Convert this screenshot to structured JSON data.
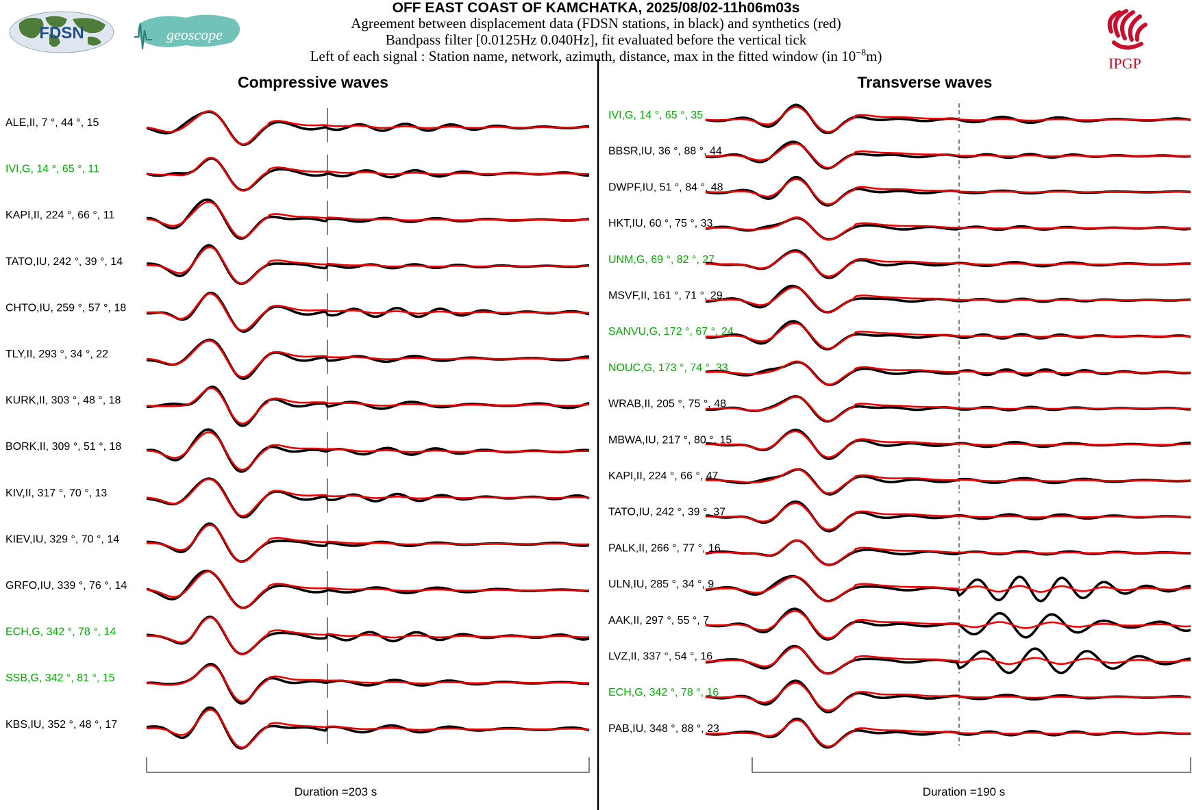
{
  "header": {
    "title": "OFF EAST COAST OF KAMCHATKA, 2025/08/02-11h06m03s",
    "line1": "Agreement between displacement data (FDSN stations, in black) and synthetics (red)",
    "line2": "Bandpass filter [0.0125Hz 0.040Hz], fit evaluated before the vertical tick",
    "line3_prefix": "Left of each signal : Station name, network, azimuth, distance, max in the fitted window (in 10",
    "line3_exp": "−8",
    "line3_suffix": "m)"
  },
  "logos": {
    "fdsn": "FDSN",
    "geoscope": "geoscope",
    "ipgp": "IPGP"
  },
  "colors": {
    "data": "#000000",
    "synthetic": "#ee0000",
    "label_default": "#000000",
    "label_geoscope": "#00aa00",
    "logo_red": "#c8102e",
    "geoscope_teal": "#3aa79a",
    "fdsn_blue": "#1f4e8c"
  },
  "chart_data": [
    {
      "type": "line",
      "title": "Compressive waves",
      "duration_label": "Duration =203 s",
      "duration_s": 203,
      "series": [
        {
          "name": "data",
          "color": "black"
        },
        {
          "name": "synthetics",
          "color": "red"
        }
      ],
      "stations": [
        {
          "label": "ALE,II, 7 °, 44 °, 15",
          "station": "ALE",
          "network": "II",
          "azimuth": 7,
          "distance": 44,
          "max": 15,
          "green": false
        },
        {
          "label": "IVI,G, 14 °, 65 °, 11",
          "station": "IVI",
          "network": "G",
          "azimuth": 14,
          "distance": 65,
          "max": 11,
          "green": true
        },
        {
          "label": "KAPI,II, 224 °, 66 °, 11",
          "station": "KAPI",
          "network": "II",
          "azimuth": 224,
          "distance": 66,
          "max": 11,
          "green": false
        },
        {
          "label": "TATO,IU, 242 °, 39 °, 14",
          "station": "TATO",
          "network": "IU",
          "azimuth": 242,
          "distance": 39,
          "max": 14,
          "green": false
        },
        {
          "label": "CHTO,IU, 259 °, 57 °, 18",
          "station": "CHTO",
          "network": "IU",
          "azimuth": 259,
          "distance": 57,
          "max": 18,
          "green": false
        },
        {
          "label": "TLY,II, 293 °, 34 °, 22",
          "station": "TLY",
          "network": "II",
          "azimuth": 293,
          "distance": 34,
          "max": 22,
          "green": false
        },
        {
          "label": "KURK,II, 303 °, 48 °, 18",
          "station": "KURK",
          "network": "II",
          "azimuth": 303,
          "distance": 48,
          "max": 18,
          "green": false
        },
        {
          "label": "BORK,II, 309 °, 51 °, 18",
          "station": "BORK",
          "network": "II",
          "azimuth": 309,
          "distance": 51,
          "max": 18,
          "green": false
        },
        {
          "label": "KIV,II, 317 °, 70 °, 13",
          "station": "KIV",
          "network": "II",
          "azimuth": 317,
          "distance": 70,
          "max": 13,
          "green": false
        },
        {
          "label": "KIEV,IU, 329 °, 70 °, 14",
          "station": "KIEV",
          "network": "IU",
          "azimuth": 329,
          "distance": 70,
          "max": 14,
          "green": false
        },
        {
          "label": "GRFO,IU, 339 °, 76 °, 14",
          "station": "GRFO",
          "network": "IU",
          "azimuth": 339,
          "distance": 76,
          "max": 14,
          "green": false
        },
        {
          "label": "ECH,G, 342 °, 78 °, 14",
          "station": "ECH",
          "network": "G",
          "azimuth": 342,
          "distance": 78,
          "max": 14,
          "green": true
        },
        {
          "label": "SSB,G, 342 °, 81 °, 15",
          "station": "SSB",
          "network": "G",
          "azimuth": 342,
          "distance": 81,
          "max": 15,
          "green": true
        },
        {
          "label": "KBS,IU, 352 °, 48 °, 17",
          "station": "KBS",
          "network": "IU",
          "azimuth": 352,
          "distance": 48,
          "max": 17,
          "green": false
        }
      ]
    },
    {
      "type": "line",
      "title": "Transverse waves",
      "duration_label": "Duration =190 s",
      "duration_s": 190,
      "series": [
        {
          "name": "data",
          "color": "black"
        },
        {
          "name": "synthetics",
          "color": "red"
        }
      ],
      "stations": [
        {
          "label": "IVI,G, 14 °, 65 °, 35",
          "station": "IVI",
          "network": "G",
          "azimuth": 14,
          "distance": 65,
          "max": 35,
          "green": true
        },
        {
          "label": "BBSR,IU, 36 °, 88 °, 44",
          "station": "BBSR",
          "network": "IU",
          "azimuth": 36,
          "distance": 88,
          "max": 44,
          "green": false
        },
        {
          "label": "DWPF,IU, 51 °, 84 °, 48",
          "station": "DWPF",
          "network": "IU",
          "azimuth": 51,
          "distance": 84,
          "max": 48,
          "green": false
        },
        {
          "label": "HKT,IU, 60 °, 75 °, 33",
          "station": "HKT",
          "network": "IU",
          "azimuth": 60,
          "distance": 75,
          "max": 33,
          "green": false
        },
        {
          "label": "UNM,G, 69 °, 82 °, 27",
          "station": "UNM",
          "network": "G",
          "azimuth": 69,
          "distance": 82,
          "max": 27,
          "green": true
        },
        {
          "label": "MSVF,II, 161 °, 71 °, 29",
          "station": "MSVF",
          "network": "II",
          "azimuth": 161,
          "distance": 71,
          "max": 29,
          "green": false
        },
        {
          "label": "SANVU,G, 172 °, 67 °, 24",
          "station": "SANVU",
          "network": "G",
          "azimuth": 172,
          "distance": 67,
          "max": 24,
          "green": true
        },
        {
          "label": "NOUC,G, 173 °, 74 °, 33",
          "station": "NOUC",
          "network": "G",
          "azimuth": 173,
          "distance": 74,
          "max": 33,
          "green": true
        },
        {
          "label": "WRAB,II, 205 °, 75 °, 48",
          "station": "WRAB",
          "network": "II",
          "azimuth": 205,
          "distance": 75,
          "max": 48,
          "green": false
        },
        {
          "label": "MBWA,IU, 217 °, 80 °, 15",
          "station": "MBWA",
          "network": "IU",
          "azimuth": 217,
          "distance": 80,
          "max": 15,
          "green": false
        },
        {
          "label": "KAPI,II, 224 °, 66 °, 47",
          "station": "KAPI",
          "network": "II",
          "azimuth": 224,
          "distance": 66,
          "max": 47,
          "green": false
        },
        {
          "label": "TATO,IU, 242 °, 39 °, 37",
          "station": "TATO",
          "network": "IU",
          "azimuth": 242,
          "distance": 39,
          "max": 37,
          "green": false
        },
        {
          "label": "PALK,II, 266 °, 77 °, 16",
          "station": "PALK",
          "network": "II",
          "azimuth": 266,
          "distance": 77,
          "max": 16,
          "green": false
        },
        {
          "label": "ULN,IU, 285 °, 34 °, 9",
          "station": "ULN",
          "network": "IU",
          "azimuth": 285,
          "distance": 34,
          "max": 9,
          "green": false
        },
        {
          "label": "AAK,II, 297 °, 55 °, 7",
          "station": "AAK",
          "network": "II",
          "azimuth": 297,
          "distance": 55,
          "max": 7,
          "green": false
        },
        {
          "label": "LVZ,II, 337 °, 54 °, 16",
          "station": "LVZ",
          "network": "II",
          "azimuth": 337,
          "distance": 54,
          "max": 16,
          "green": false
        },
        {
          "label": "ECH,G, 342 °, 78 °, 16",
          "station": "ECH",
          "network": "G",
          "azimuth": 342,
          "distance": 78,
          "max": 16,
          "green": true
        },
        {
          "label": "PAB,IU, 348 °, 88 °, 23",
          "station": "PAB",
          "network": "IU",
          "azimuth": 348,
          "distance": 88,
          "max": 23,
          "green": false
        }
      ]
    }
  ]
}
